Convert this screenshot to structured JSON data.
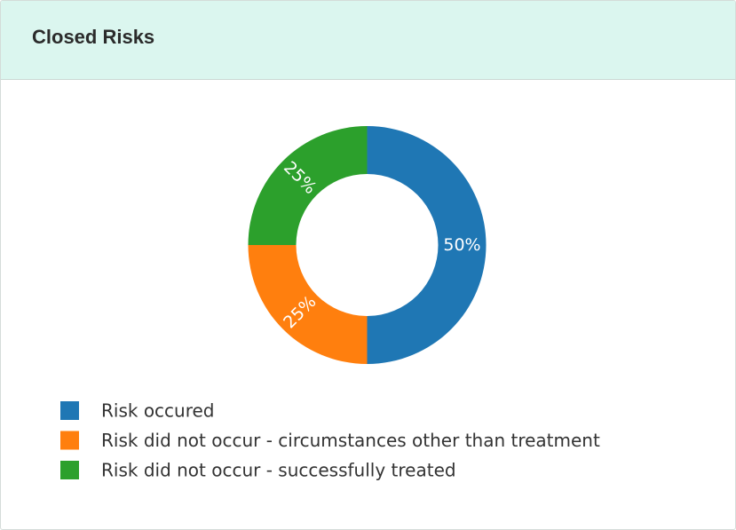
{
  "panel": {
    "title": "Closed Risks"
  },
  "chart_data": {
    "type": "pie",
    "title": "",
    "donut": true,
    "labels": [
      "Risk occured",
      "Risk did not occur - circumstances other than treatment",
      "Risk did not occur - successfully treated"
    ],
    "values": [
      50,
      25,
      25
    ],
    "percent_labels": [
      "50%",
      "25%",
      "25%"
    ],
    "colors": [
      "#1f77b4",
      "#ff7f0e",
      "#2ca02c"
    ],
    "label_color": "#ffffff",
    "legend_placement": "bottom-left"
  }
}
